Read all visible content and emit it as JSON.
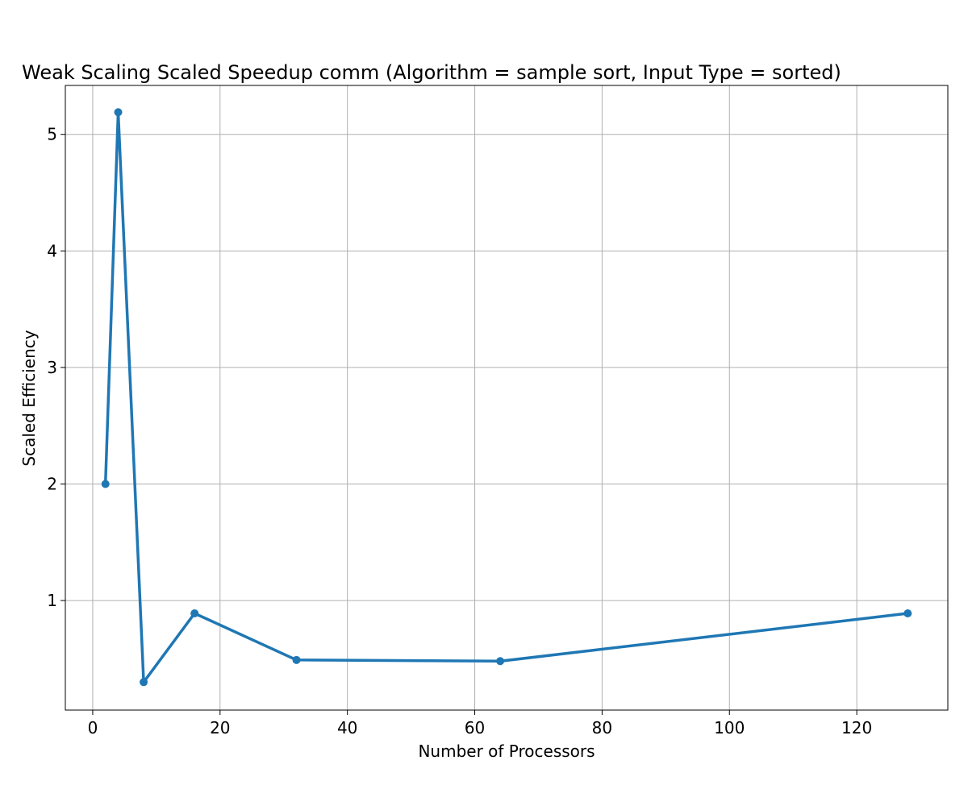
{
  "chart_data": {
    "type": "line",
    "title": "Weak Scaling Scaled Speedup comm (Algorithm = sample sort, Input Type = sorted)",
    "xlabel": "Number of Processors",
    "ylabel": "Scaled Efficiency",
    "xlim": [
      -4.3,
      134.3
    ],
    "ylim": [
      0.06,
      5.42
    ],
    "xticks": [
      0,
      20,
      40,
      60,
      80,
      100,
      120
    ],
    "yticks": [
      1,
      2,
      3,
      4,
      5
    ],
    "grid": true,
    "series": [
      {
        "color": "#1f77b4",
        "x": [
          2,
          4,
          8,
          16,
          32,
          64,
          128
        ],
        "y": [
          2.0,
          5.19,
          0.3,
          0.89,
          0.49,
          0.48,
          0.89
        ]
      }
    ]
  }
}
